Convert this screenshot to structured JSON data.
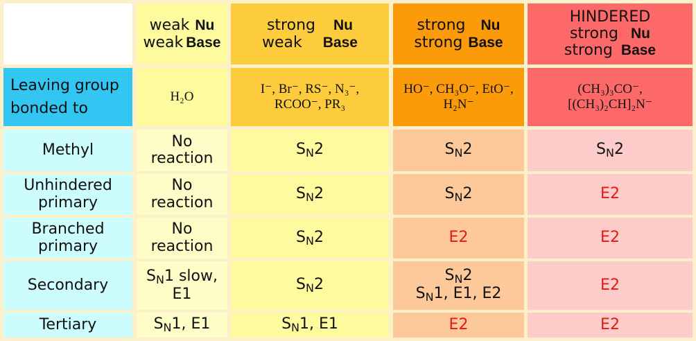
{
  "header": {
    "col1": {
      "line1_word": "weak",
      "line1_bold": "Nu",
      "line2_word": "weak",
      "line2_bold": "Base"
    },
    "col2": {
      "line1_word": "strong",
      "line1_bold": "Nu",
      "line2_word": "weak",
      "line2_bold": "Base"
    },
    "col3": {
      "line1_word": "strong",
      "line1_bold": "Nu",
      "line2_word": "strong",
      "line2_bold": "Base"
    },
    "col4": {
      "title": "HINDERED",
      "line1_word": "strong",
      "line1_bold": "Nu",
      "line2_word": "strong",
      "line2_bold": "Base"
    }
  },
  "nucleophiles": {
    "row_label": "Leaving group bonded to",
    "col1": "H₂O",
    "col2_line1": "I⁻, Br⁻, RS⁻, N₃⁻,",
    "col2_line2": "RCOO⁻, PR₃",
    "col3_line1": "HO⁻, CH₃O⁻, EtO⁻,",
    "col3_line2": "H₂N⁻",
    "col4_line1": "(CH₃)₃CO⁻,",
    "col4_line2": "[(CH₃)₂CH]₂N⁻"
  },
  "rows": [
    {
      "label": "Methyl",
      "c1": "No reaction",
      "c2": "SN2",
      "c3": "SN2",
      "c4": "SN2"
    },
    {
      "label": "Unhindered primary",
      "c1": "No reaction",
      "c2": "SN2",
      "c3": "SN2",
      "c4": "E2"
    },
    {
      "label": "Branched primary",
      "c1": "No reaction",
      "c2": "SN2",
      "c3": "E2",
      "c4": "E2"
    },
    {
      "label": "Secondary",
      "c1": "SN1 slow, E1",
      "c2": "SN2",
      "c3": "SN2 SN1, E1, E2",
      "c4": "E2"
    },
    {
      "label": "Tertiary",
      "c1": "SN1, E1",
      "c2": "SN1, E1",
      "c3": "E2",
      "c4": "E2"
    }
  ],
  "sn": {
    "s": "S",
    "n": "N"
  },
  "colors": {
    "background": "#fbf0c9",
    "blue_header": "#33c6f3",
    "label_cells": "#ccfcfc",
    "col1_header": "#fdfb9e",
    "col2_header": "#fccc3d",
    "col3_header": "#fb9b0a",
    "col4_header": "#fd6968",
    "col1_body": "#fefdc8",
    "col2_body": "#fdfb9e",
    "col3_body": "#fdc99b",
    "col4_body": "#fdcbca",
    "red_text": "#e01b10"
  }
}
